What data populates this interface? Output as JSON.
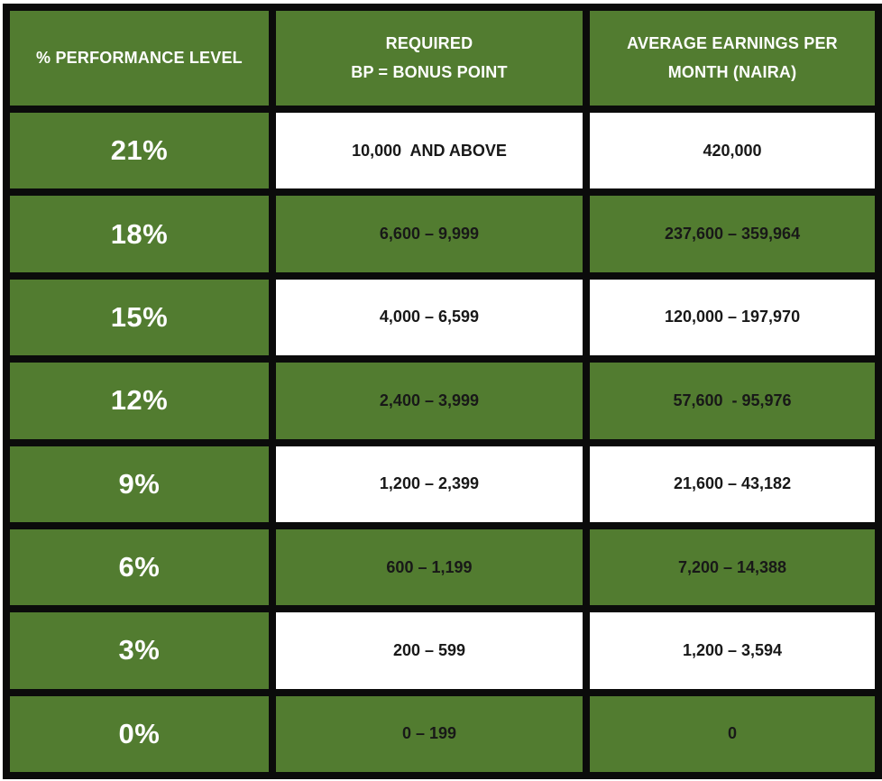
{
  "colors": {
    "green": "#527c30",
    "border": "#0b0b0b",
    "white_cell": "#ffffff",
    "header_text": "#ffffff",
    "data_text": "#181818",
    "page_bg": "#ffffff"
  },
  "chart_data": {
    "type": "table",
    "title": "Performance level bonus table",
    "header": {
      "performance_level": "% PERFORMANCE LEVEL",
      "required_line1": "REQUIRED",
      "required_line2": "BP = BONUS POINT",
      "earnings_line1": "AVERAGE EARNINGS PER",
      "earnings_line2": "MONTH (NAIRA)"
    },
    "columns": [
      "% PERFORMANCE LEVEL",
      "REQUIRED BP = BONUS POINT",
      "AVERAGE EARNINGS PER MONTH (NAIRA)"
    ],
    "rows": [
      {
        "level": "21%",
        "required_bp": "10,000  AND ABOVE",
        "earnings": "420,000",
        "variant": "white"
      },
      {
        "level": "18%",
        "required_bp": "6,600 – 9,999",
        "earnings": "237,600 – 359,964",
        "variant": "green"
      },
      {
        "level": "15%",
        "required_bp": "4,000 – 6,599",
        "earnings": "120,000 – 197,970",
        "variant": "white"
      },
      {
        "level": "12%",
        "required_bp": "2,400 – 3,999",
        "earnings": "57,600  - 95,976",
        "variant": "green"
      },
      {
        "level": "9%",
        "required_bp": "1,200 – 2,399",
        "earnings": "21,600 – 43,182",
        "variant": "white"
      },
      {
        "level": "6%",
        "required_bp": "600 – 1,199",
        "earnings": "7,200 – 14,388",
        "variant": "green"
      },
      {
        "level": "3%",
        "required_bp": "200 – 599",
        "earnings": "1,200 – 3,594",
        "variant": "white"
      },
      {
        "level": "0%",
        "required_bp": "0 – 199",
        "earnings": "0",
        "variant": "green"
      }
    ]
  }
}
